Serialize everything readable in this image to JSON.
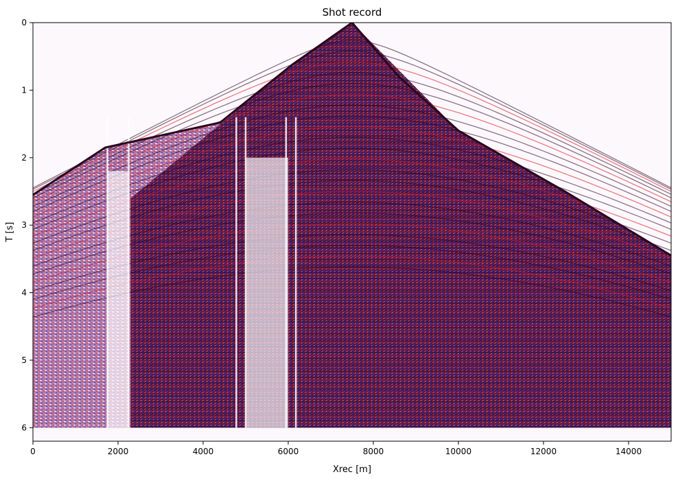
{
  "chart_data": {
    "type": "heatmap",
    "title": "Shot record",
    "xlabel": "Xrec [m]",
    "ylabel": "T [s]",
    "xlim": [
      0,
      15000
    ],
    "ylim": [
      0,
      6.2
    ],
    "y_inverted": true,
    "x_ticks": [
      0,
      2000,
      4000,
      6000,
      8000,
      10000,
      12000,
      14000
    ],
    "y_ticks": [
      0,
      1,
      2,
      3,
      4,
      5,
      6
    ],
    "colormap": "seismic (blue-white-red)",
    "colors": {
      "positive": "#ff0000",
      "negative": "#0000ff",
      "zero": "#ffffff",
      "dense": "#3a0a2e"
    },
    "grid": false,
    "source_x": 7500,
    "data_time_max": 6.0,
    "first_break": [
      {
        "x": 0,
        "t": 2.55
      },
      {
        "x": 1700,
        "t": 1.85
      },
      {
        "x": 4400,
        "t": 1.48
      },
      {
        "x": 6100,
        "t": 0.62
      },
      {
        "x": 7500,
        "t": 0.0
      },
      {
        "x": 8600,
        "t": 0.8
      },
      {
        "x": 10000,
        "t": 1.6
      },
      {
        "x": 12500,
        "t": 2.5
      },
      {
        "x": 15000,
        "t": 3.45
      }
    ],
    "secondary_front": [
      {
        "x": 2300,
        "t": 2.6
      },
      {
        "x": 6100,
        "t": 0.62
      }
    ],
    "blank_zones": [
      {
        "x0": 1750,
        "x1": 2250,
        "t_top": 2.2
      },
      {
        "x0": 5000,
        "x1": 6000,
        "t_top": 2.0
      }
    ],
    "dead_traces": [
      1750,
      2250,
      4780,
      5000,
      5950,
      6180
    ]
  }
}
